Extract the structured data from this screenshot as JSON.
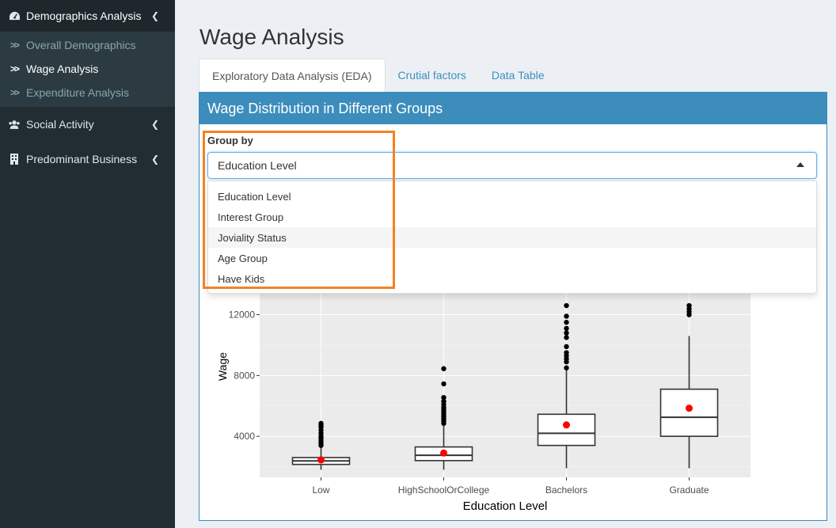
{
  "sidebar": {
    "items": [
      {
        "label": "Demographics Analysis",
        "icon": "dashboard-icon"
      },
      {
        "label": "Social Activity",
        "icon": "users-icon"
      },
      {
        "label": "Predominant Business",
        "icon": "building-icon"
      }
    ],
    "subitems": [
      {
        "label": "Overall Demographics"
      },
      {
        "label": "Wage Analysis"
      },
      {
        "label": "Expenditure Analysis"
      }
    ]
  },
  "page": {
    "title": "Wage Analysis"
  },
  "tabs": [
    {
      "label": "Exploratory Data Analysis (EDA)"
    },
    {
      "label": "Crutial factors"
    },
    {
      "label": "Data Table"
    }
  ],
  "box": {
    "title": "Wage Distribution in Different Groups"
  },
  "group_by": {
    "label": "Group by",
    "selected": "Education Level",
    "options": [
      "Education Level",
      "Interest Group",
      "Joviality Status",
      "Age Group",
      "Have Kids"
    ]
  },
  "colors": {
    "accent": "#3c8dbc",
    "highlight": "#f58220",
    "mean_point": "#ff0000"
  },
  "chart_data": {
    "type": "box",
    "xlabel": "Education Level",
    "ylabel": "Wage",
    "categories": [
      "Low",
      "HighSchoolOrCollege",
      "Bachelors",
      "Graduate"
    ],
    "yticks": [
      "4000",
      "8000",
      "12000"
    ],
    "ylim": [
      1300,
      13800
    ],
    "grid": true,
    "boxes": [
      {
        "min": 1800,
        "q1": 2150,
        "median": 2380,
        "q3": 2600,
        "max": 3250,
        "mean": 2450,
        "outliers": [
          3400,
          3550,
          3700,
          3850,
          4000,
          4200,
          4400,
          4600,
          4750,
          4850
        ]
      },
      {
        "min": 1800,
        "q1": 2400,
        "median": 2750,
        "q3": 3300,
        "max": 4700,
        "mean": 2900,
        "outliers": [
          4850,
          5000,
          5150,
          5300,
          5450,
          5600,
          5750,
          5900,
          6100,
          6300,
          6550,
          7450,
          8450
        ]
      },
      {
        "min": 1900,
        "q1": 3400,
        "median": 4200,
        "q3": 5450,
        "max": 8350,
        "mean": 4750,
        "outliers": [
          8500,
          8900,
          9100,
          9300,
          9500,
          9900,
          10500,
          10800,
          11100,
          11500,
          11900,
          12600
        ]
      },
      {
        "min": 1900,
        "q1": 4000,
        "median": 5250,
        "q3": 7100,
        "max": 10600,
        "mean": 5850,
        "outliers": [
          12000,
          12200,
          12400,
          12600
        ]
      }
    ]
  }
}
